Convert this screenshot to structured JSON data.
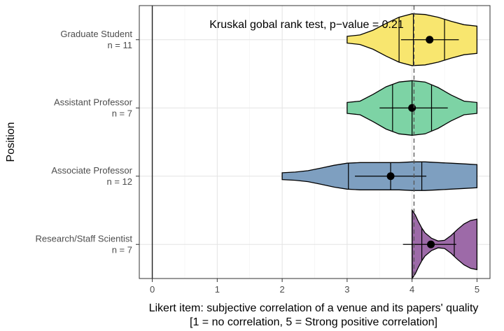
{
  "chart_data": {
    "type": "violin",
    "title": "",
    "annotation": "Kruskal gobal rank test, p−value  = 0.21",
    "xlabel_line1": "Likert item: subjective correlation of a venue and its papers' quality",
    "xlabel_line2": "[1 = no correlation, 5 = Strong positive correlation]",
    "ylabel": "Position",
    "xlim": [
      -0.2,
      5.2
    ],
    "xticks": [
      0,
      1,
      2,
      3,
      4,
      5
    ],
    "xtick_labels": [
      "0",
      "1",
      "2",
      "3",
      "4",
      "5"
    ],
    "reference_line": 4.03,
    "grid": true,
    "groups": [
      {
        "label": "Graduate Student",
        "n_label": "n = 11",
        "color": "#F8E66F",
        "mean": 4.27,
        "ci": [
          3.83,
          4.72
        ],
        "quartiles": [
          3.8,
          4.02,
          4.5
        ],
        "range": [
          3,
          5
        ],
        "density": [
          [
            3.0,
            0.05
          ],
          [
            3.2,
            0.07
          ],
          [
            3.4,
            0.14
          ],
          [
            3.6,
            0.24
          ],
          [
            3.8,
            0.33
          ],
          [
            4.0,
            0.38
          ],
          [
            4.2,
            0.37
          ],
          [
            4.4,
            0.33
          ],
          [
            4.6,
            0.27
          ],
          [
            4.8,
            0.22
          ],
          [
            5.0,
            0.2
          ]
        ]
      },
      {
        "label": "Assistant Professor",
        "n_label": "n = 7",
        "color": "#7DD3A5",
        "mean": 4.0,
        "ci": [
          3.5,
          4.55
        ],
        "quartiles": [
          3.7,
          4.0,
          4.3
        ],
        "range": [
          3,
          5
        ],
        "density": [
          [
            3.0,
            0.08
          ],
          [
            3.2,
            0.1
          ],
          [
            3.4,
            0.2
          ],
          [
            3.6,
            0.31
          ],
          [
            3.8,
            0.38
          ],
          [
            4.0,
            0.4
          ],
          [
            4.2,
            0.38
          ],
          [
            4.4,
            0.3
          ],
          [
            4.6,
            0.19
          ],
          [
            4.8,
            0.1
          ],
          [
            5.0,
            0.08
          ]
        ]
      },
      {
        "label": "Associate Professor",
        "n_label": "n = 12",
        "color": "#7E9FC0",
        "mean": 3.67,
        "ci": [
          3.12,
          4.22
        ],
        "quartiles": [
          3.02,
          3.67,
          4.15
        ],
        "range": [
          2,
          5
        ],
        "density": [
          [
            2.0,
            0.05
          ],
          [
            2.2,
            0.06
          ],
          [
            2.4,
            0.08
          ],
          [
            2.6,
            0.12
          ],
          [
            2.8,
            0.16
          ],
          [
            3.0,
            0.19
          ],
          [
            3.2,
            0.2
          ],
          [
            3.4,
            0.2
          ],
          [
            3.6,
            0.2
          ],
          [
            3.8,
            0.2
          ],
          [
            4.0,
            0.21
          ],
          [
            4.2,
            0.21
          ],
          [
            4.4,
            0.2
          ],
          [
            4.6,
            0.19
          ],
          [
            4.8,
            0.18
          ],
          [
            5.0,
            0.17
          ]
        ]
      },
      {
        "label": "Research/Staff Scientist",
        "n_label": "n = 7",
        "color": "#9D6AA8",
        "mean": 4.29,
        "ci": [
          3.86,
          4.68
        ],
        "quartiles": [
          4.0,
          4.15,
          4.65
        ],
        "range": [
          4,
          5
        ],
        "density": [
          [
            4.0,
            0.5
          ],
          [
            4.05,
            0.43
          ],
          [
            4.1,
            0.33
          ],
          [
            4.15,
            0.24
          ],
          [
            4.2,
            0.17
          ],
          [
            4.3,
            0.09
          ],
          [
            4.4,
            0.05
          ],
          [
            4.5,
            0.06
          ],
          [
            4.6,
            0.13
          ],
          [
            4.7,
            0.22
          ],
          [
            4.8,
            0.3
          ],
          [
            4.9,
            0.35
          ],
          [
            5.0,
            0.37
          ]
        ]
      }
    ]
  }
}
